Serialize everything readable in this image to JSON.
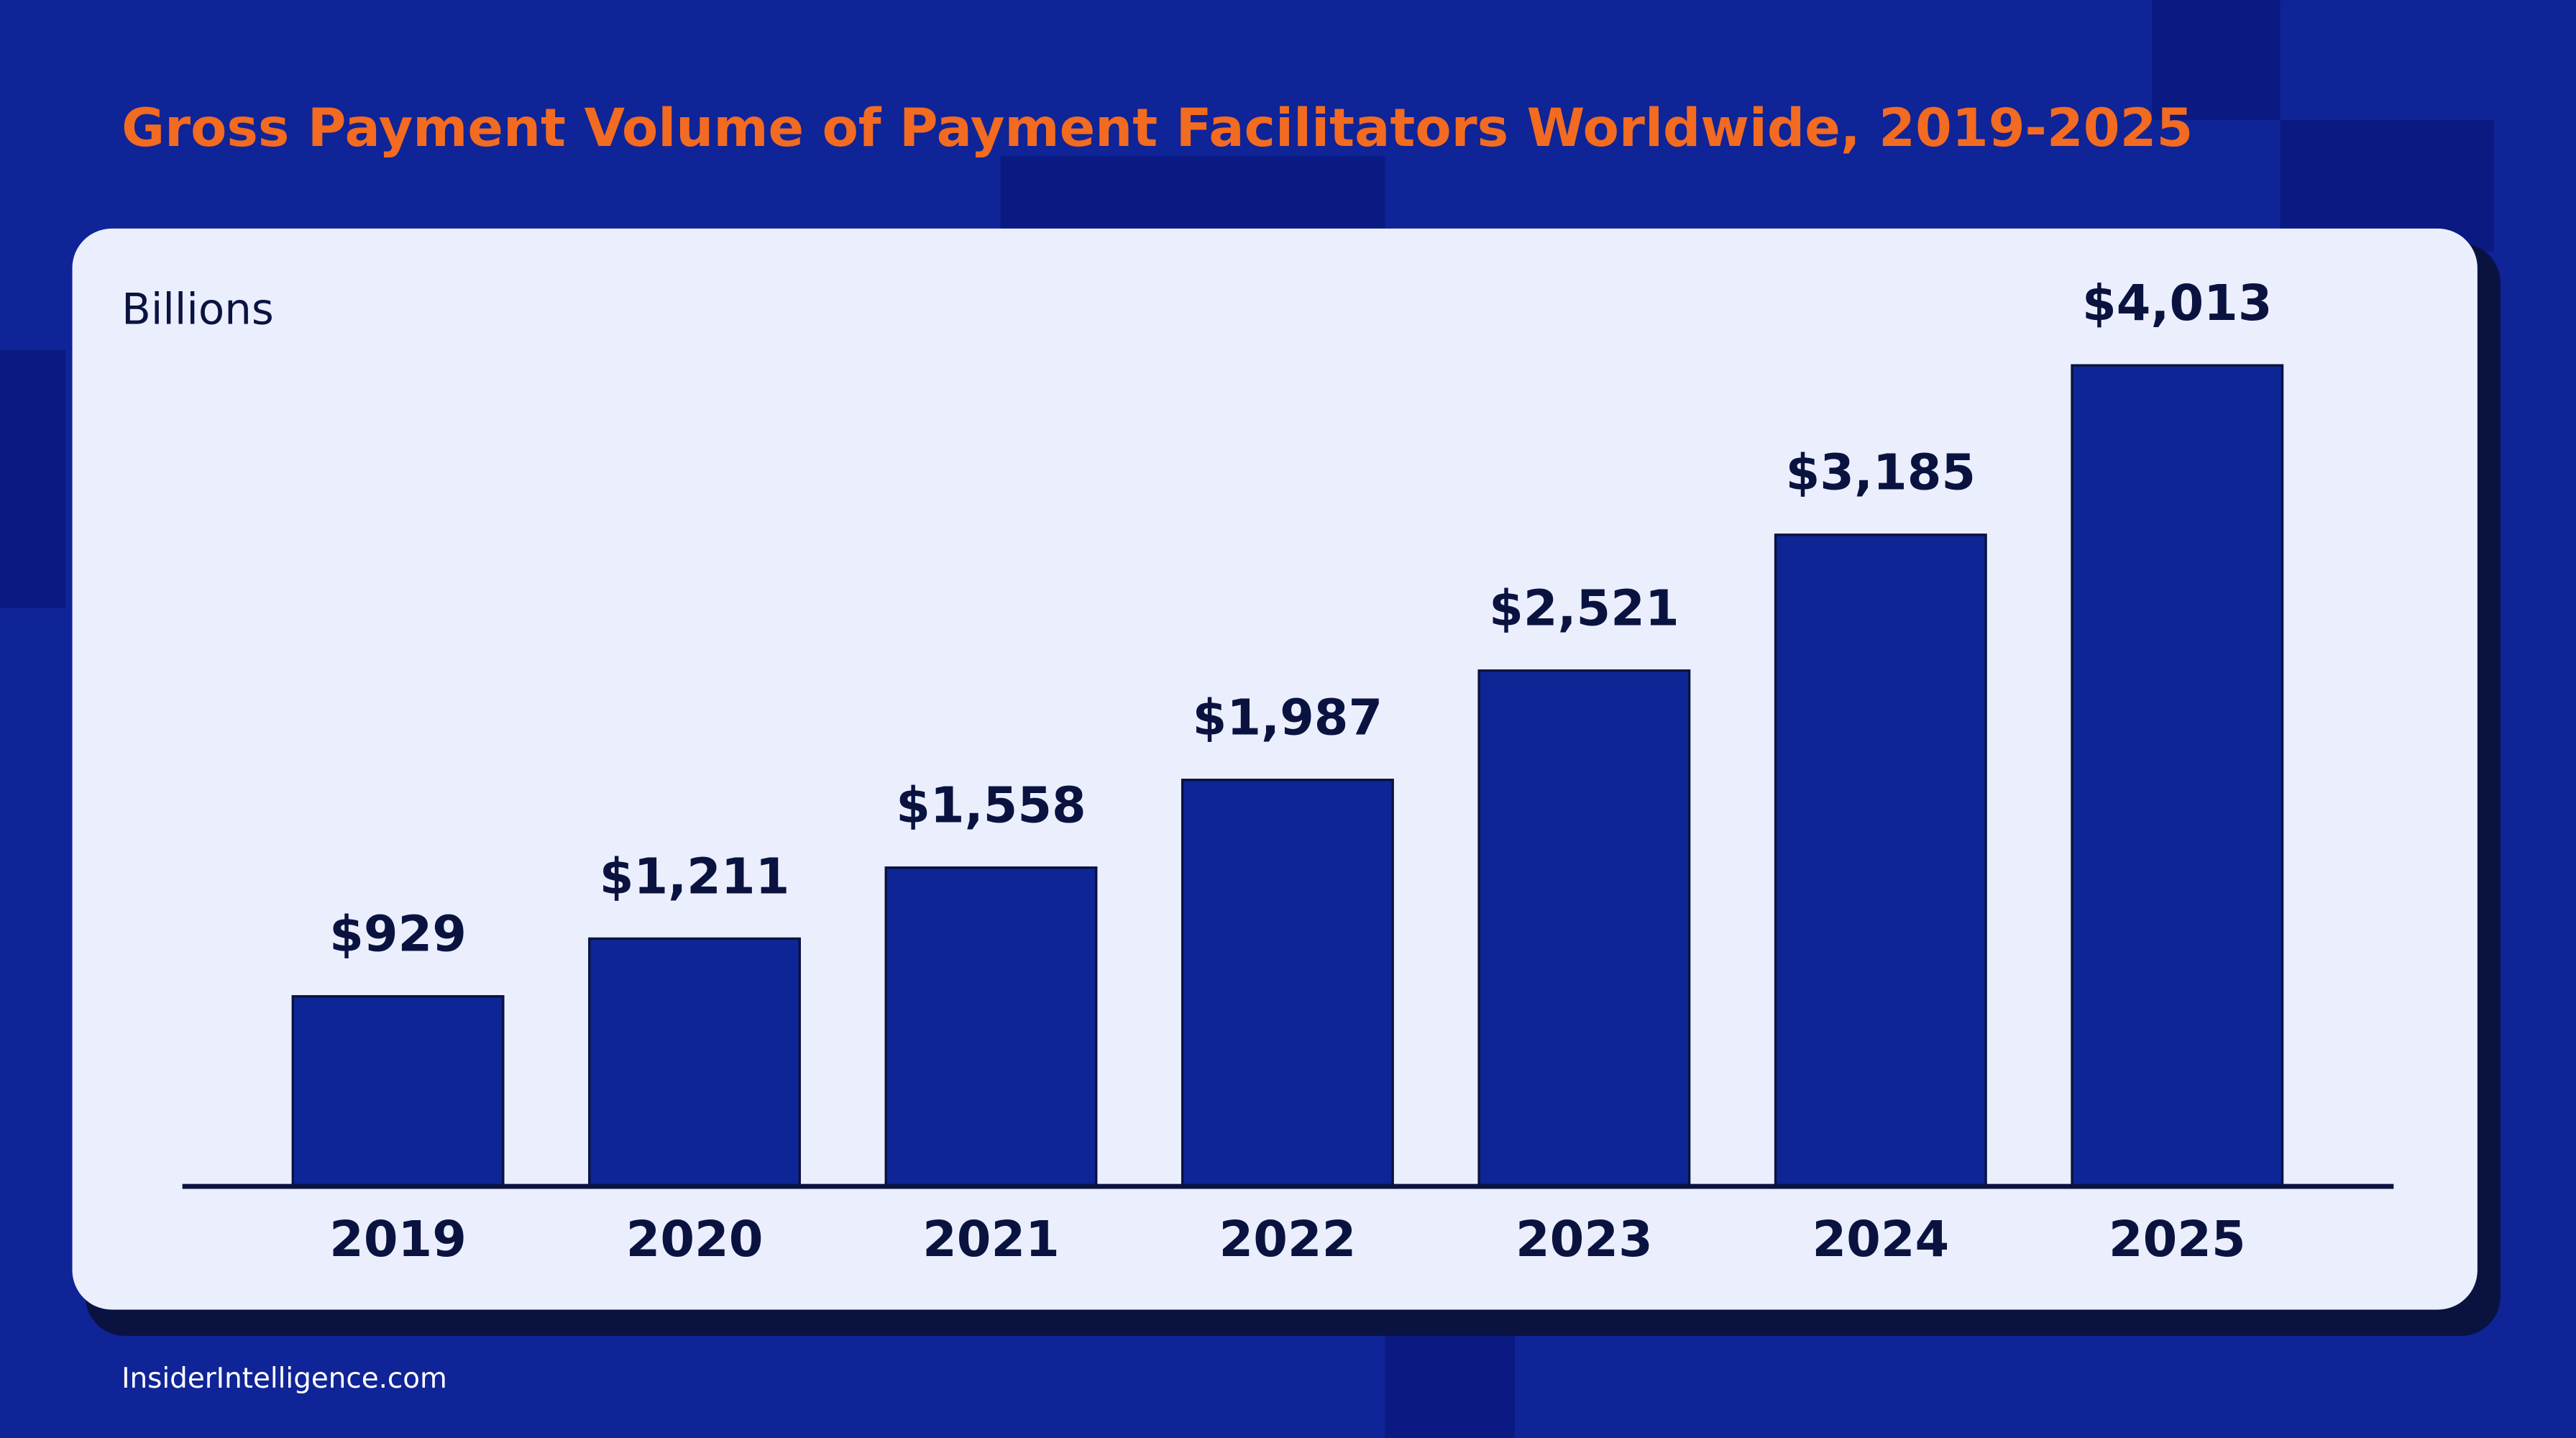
{
  "chart_data": {
    "type": "bar",
    "title": "Gross Payment Volume of Payment Facilitators Worldwide, 2019-2025",
    "subtitle": "Billions",
    "source": "InsiderIntelligence.com",
    "categories": [
      "2019",
      "2020",
      "2021",
      "2022",
      "2023",
      "2024",
      "2025"
    ],
    "values": [
      929,
      1211,
      1558,
      1987,
      2521,
      3185,
      4013
    ],
    "value_labels": [
      "$929",
      "$1,211",
      "$1,558",
      "$1,987",
      "$2,521",
      "$3,185",
      "$4,013"
    ],
    "color": "#0e2595",
    "ylim": [
      0,
      4200
    ]
  }
}
